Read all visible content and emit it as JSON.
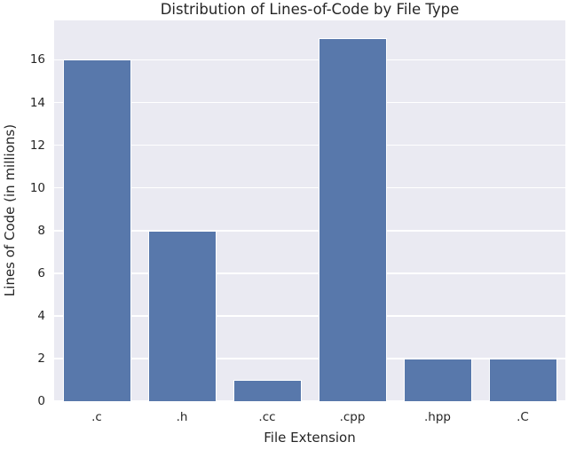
{
  "chart_data": {
    "type": "bar",
    "title": "Distribution of Lines-of-Code by File Type",
    "xlabel": "File Extension",
    "ylabel": "Lines of Code (in millions)",
    "categories": [
      ".c",
      ".h",
      ".cc",
      ".cpp",
      ".hpp",
      ".C"
    ],
    "values": [
      16,
      8,
      1,
      17,
      2,
      2
    ],
    "yticks": [
      0,
      2,
      4,
      6,
      8,
      10,
      12,
      14,
      16
    ],
    "ylim": [
      0,
      17.85
    ],
    "grid": "horizontal",
    "legend_position": "none",
    "style": "seaborn-darkgrid",
    "colors": {
      "bar": "#5878ab",
      "bar_edge": "#ffffff",
      "axes_background": "#eaeaf2",
      "gridline": "#ffffff",
      "figure_background": "#ffffff",
      "text": "#262626"
    }
  }
}
